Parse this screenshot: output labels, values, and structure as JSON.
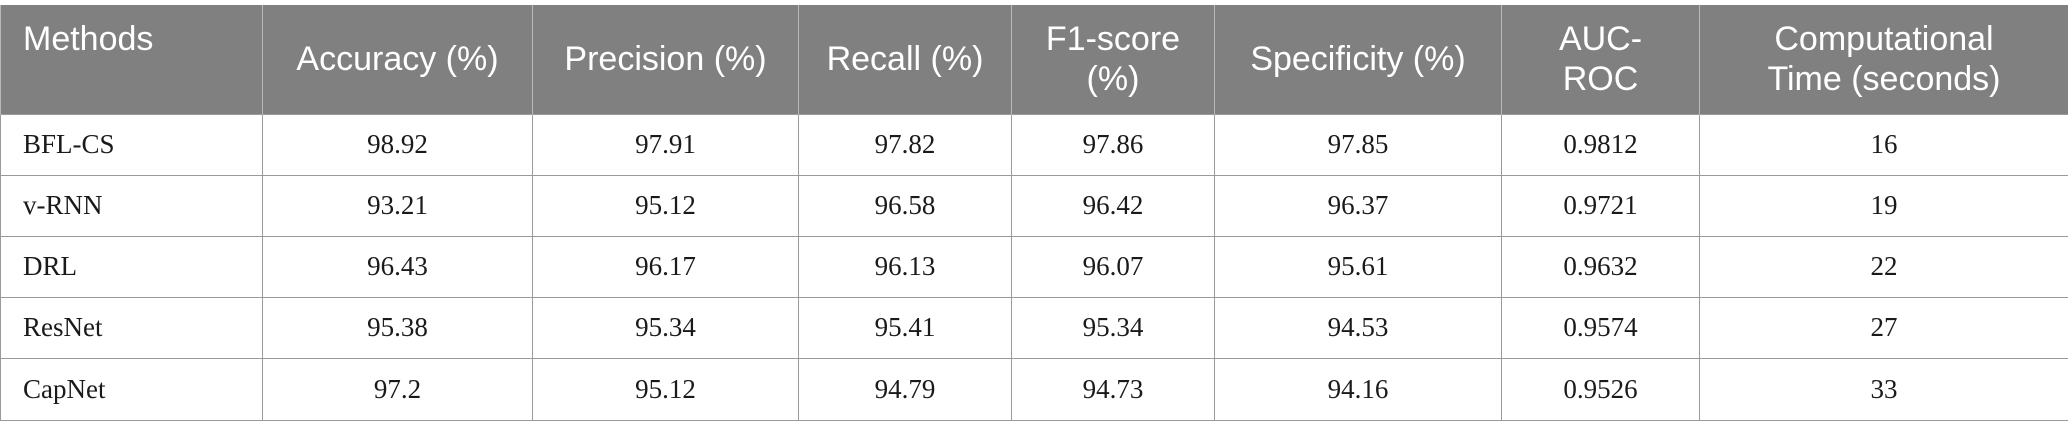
{
  "table": {
    "headers": [
      "Methods",
      "Accuracy (%)",
      "Precision (%)",
      "Recall (%)",
      "F1-score (%)",
      "Specificity (%)",
      "AUC-ROC",
      "Computational Time (seconds)"
    ],
    "rows": [
      [
        "BFL-CS",
        "98.92",
        "97.91",
        "97.82",
        "97.86",
        "97.85",
        "0.9812",
        "16"
      ],
      [
        "v-RNN",
        "93.21",
        "95.12",
        "96.58",
        "96.42",
        "96.37",
        "0.9721",
        "19"
      ],
      [
        "DRL",
        "96.43",
        "96.17",
        "96.13",
        "96.07",
        "95.61",
        "0.9632",
        "22"
      ],
      [
        "ResNet",
        "95.38",
        "95.34",
        "95.41",
        "95.34",
        "94.53",
        "0.9574",
        "27"
      ],
      [
        "CapNet",
        "97.2",
        "95.12",
        "94.79",
        "94.73",
        "94.16",
        "0.9526",
        "33"
      ]
    ]
  }
}
